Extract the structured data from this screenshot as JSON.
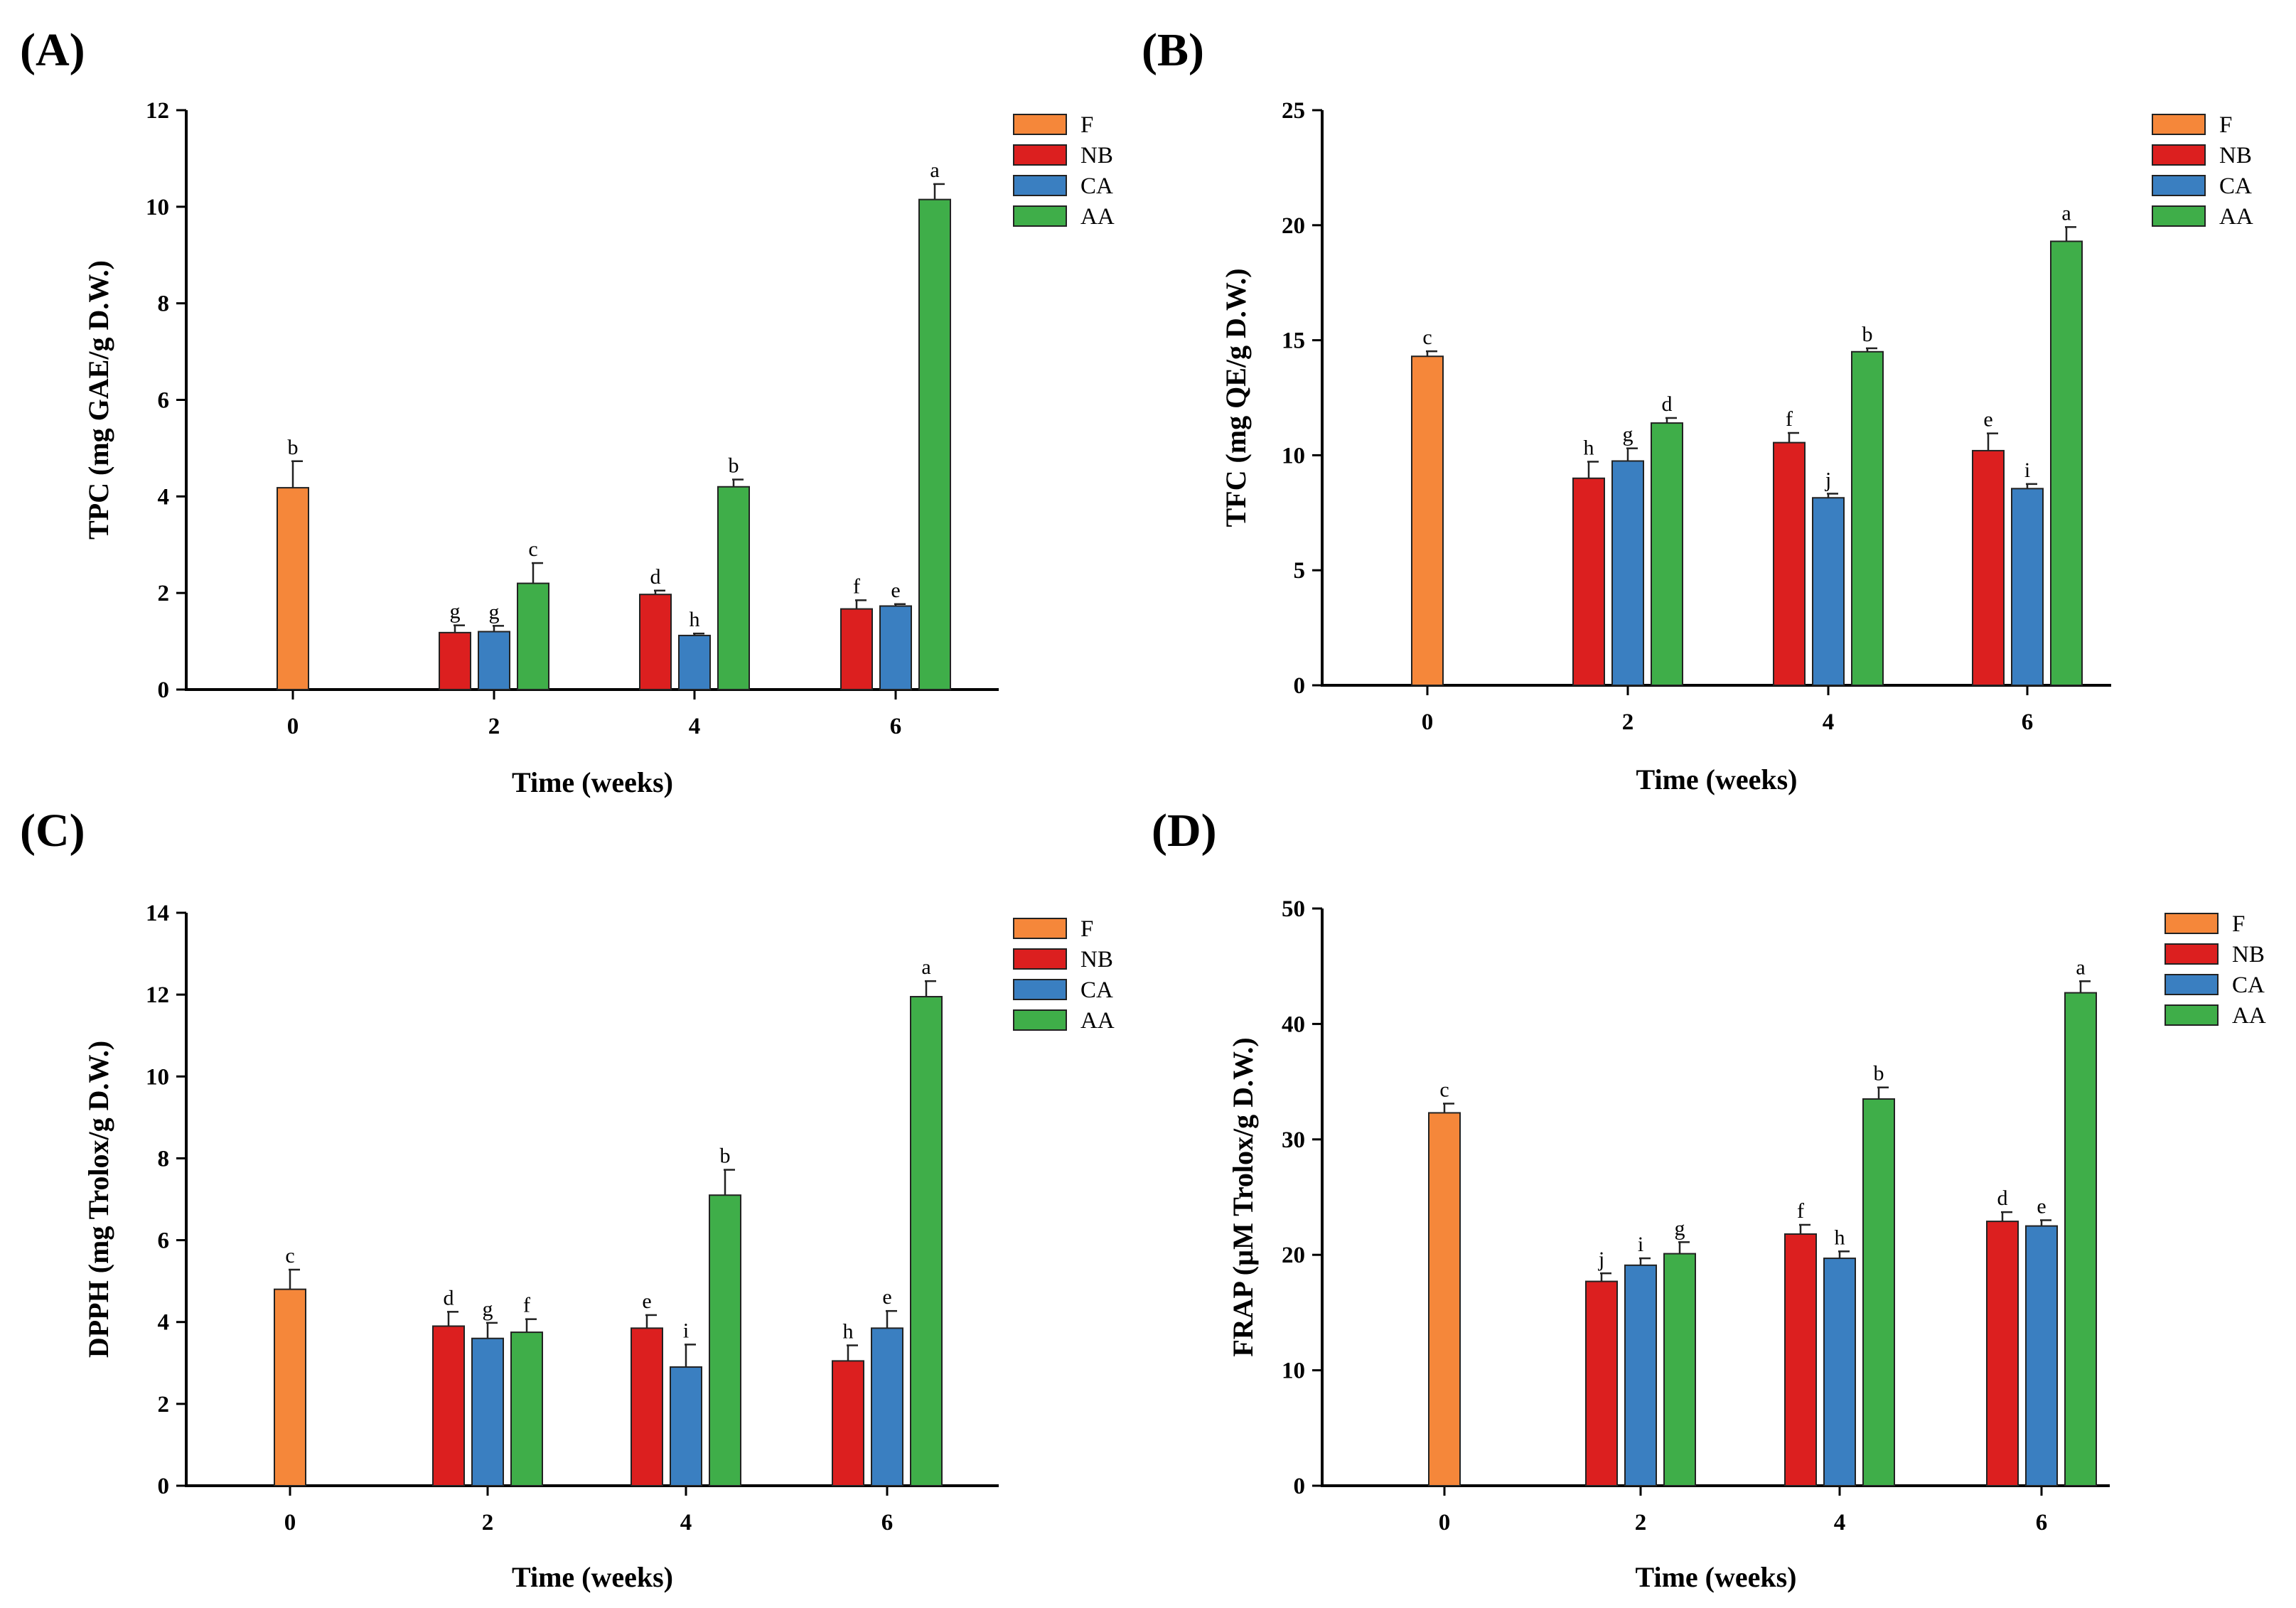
{
  "chart_data": [
    {
      "type": "bar",
      "panel_label": "(A)",
      "xlabel": "Time (weeks)",
      "ylabel": "TPC (mg GAE/g D.W.)",
      "ylim": [
        0,
        12
      ],
      "yticks": [
        "0",
        "2",
        "4",
        "6",
        "8",
        "10",
        "12"
      ],
      "categories": [
        "0",
        "2",
        "4",
        "6"
      ],
      "legend_position": "top-right",
      "series": [
        {
          "name": "F",
          "color": "#f5873a",
          "values": [
            4.18,
            null,
            null,
            null
          ],
          "errors": [
            0.55,
            null,
            null,
            null
          ],
          "letters": [
            "b",
            null,
            null,
            null
          ]
        },
        {
          "name": "NB",
          "color": "#dc1f1f",
          "values": [
            null,
            1.18,
            1.97,
            1.67
          ],
          "errors": [
            null,
            0.15,
            0.08,
            0.18
          ],
          "letters": [
            null,
            "g",
            "d",
            "f"
          ]
        },
        {
          "name": "CA",
          "color": "#3a7fc1",
          "values": [
            null,
            1.2,
            1.12,
            1.73
          ],
          "errors": [
            null,
            0.12,
            0.04,
            0.04
          ],
          "letters": [
            null,
            "g",
            "h",
            "e"
          ]
        },
        {
          "name": "AA",
          "color": "#3fae49",
          "values": [
            null,
            2.2,
            4.2,
            10.15
          ],
          "errors": [
            null,
            0.42,
            0.15,
            0.32
          ],
          "letters": [
            null,
            "c",
            "b",
            "a"
          ]
        }
      ]
    },
    {
      "type": "bar",
      "panel_label": "(B)",
      "xlabel": "Time (weeks)",
      "ylabel": "TFC (mg QE/g D.W.)",
      "ylim": [
        0,
        25
      ],
      "yticks": [
        "0",
        "5",
        "10",
        "15",
        "20",
        "25"
      ],
      "categories": [
        "0",
        "2",
        "4",
        "6"
      ],
      "legend_position": "top-right",
      "series": [
        {
          "name": "F",
          "color": "#f5873a",
          "values": [
            14.3,
            null,
            null,
            null
          ],
          "errors": [
            0.22,
            null,
            null,
            null
          ],
          "letters": [
            "c",
            null,
            null,
            null
          ]
        },
        {
          "name": "NB",
          "color": "#dc1f1f",
          "values": [
            null,
            9.0,
            10.55,
            10.2
          ],
          "errors": [
            null,
            0.72,
            0.42,
            0.75
          ],
          "letters": [
            null,
            "h",
            "f",
            "e"
          ]
        },
        {
          "name": "CA",
          "color": "#3a7fc1",
          "values": [
            null,
            9.75,
            8.15,
            8.55
          ],
          "errors": [
            null,
            0.55,
            0.18,
            0.2
          ],
          "letters": [
            null,
            "g",
            "j",
            "i"
          ]
        },
        {
          "name": "AA",
          "color": "#3fae49",
          "values": [
            null,
            11.4,
            14.5,
            19.3
          ],
          "errors": [
            null,
            0.22,
            0.15,
            0.62
          ],
          "letters": [
            null,
            "d",
            "b",
            "a"
          ]
        }
      ]
    },
    {
      "type": "bar",
      "panel_label": "(C)",
      "xlabel": "Time (weeks)",
      "ylabel": "DPPH (mg Trolox/g D.W.)",
      "ylim": [
        0,
        14
      ],
      "yticks": [
        "0",
        "2",
        "4",
        "6",
        "8",
        "10",
        "12",
        "14"
      ],
      "categories": [
        "0",
        "2",
        "4",
        "6"
      ],
      "legend_position": "top-right",
      "series": [
        {
          "name": "F",
          "color": "#f5873a",
          "values": [
            4.8,
            null,
            null,
            null
          ],
          "errors": [
            0.48,
            null,
            null,
            null
          ],
          "letters": [
            "c",
            null,
            null,
            null
          ]
        },
        {
          "name": "NB",
          "color": "#dc1f1f",
          "values": [
            null,
            3.9,
            3.85,
            3.05
          ],
          "errors": [
            null,
            0.35,
            0.32,
            0.38
          ],
          "letters": [
            null,
            "d",
            "e",
            "h"
          ]
        },
        {
          "name": "CA",
          "color": "#3a7fc1",
          "values": [
            null,
            3.6,
            2.9,
            3.85
          ],
          "errors": [
            null,
            0.38,
            0.55,
            0.42
          ],
          "letters": [
            null,
            "g",
            "i",
            "e"
          ]
        },
        {
          "name": "AA",
          "color": "#3fae49",
          "values": [
            null,
            3.75,
            7.1,
            11.95
          ],
          "errors": [
            null,
            0.32,
            0.62,
            0.38
          ],
          "letters": [
            null,
            "f",
            "b",
            "a"
          ]
        }
      ]
    },
    {
      "type": "bar",
      "panel_label": "(D)",
      "xlabel": "Time (weeks)",
      "ylabel": "FRAP (µM Trolox/g D.W.)",
      "ylim": [
        0,
        50
      ],
      "yticks": [
        "0",
        "10",
        "20",
        "30",
        "40",
        "50"
      ],
      "categories": [
        "0",
        "2",
        "4",
        "6"
      ],
      "legend_position": "top-right",
      "series": [
        {
          "name": "F",
          "color": "#f5873a",
          "values": [
            32.3,
            null,
            null,
            null
          ],
          "errors": [
            0.8,
            null,
            null,
            null
          ],
          "letters": [
            "c",
            null,
            null,
            null
          ]
        },
        {
          "name": "NB",
          "color": "#dc1f1f",
          "values": [
            null,
            17.7,
            21.8,
            22.9
          ],
          "errors": [
            null,
            0.7,
            0.8,
            0.8
          ],
          "letters": [
            null,
            "j",
            "f",
            "d"
          ]
        },
        {
          "name": "CA",
          "color": "#3a7fc1",
          "values": [
            null,
            19.1,
            19.7,
            22.5
          ],
          "errors": [
            null,
            0.6,
            0.6,
            0.5
          ],
          "letters": [
            null,
            "i",
            "h",
            "e"
          ]
        },
        {
          "name": "AA",
          "color": "#3fae49",
          "values": [
            null,
            20.1,
            33.5,
            42.7
          ],
          "errors": [
            null,
            1.0,
            1.0,
            1.0
          ],
          "letters": [
            null,
            "g",
            "b",
            "a"
          ]
        }
      ]
    }
  ]
}
